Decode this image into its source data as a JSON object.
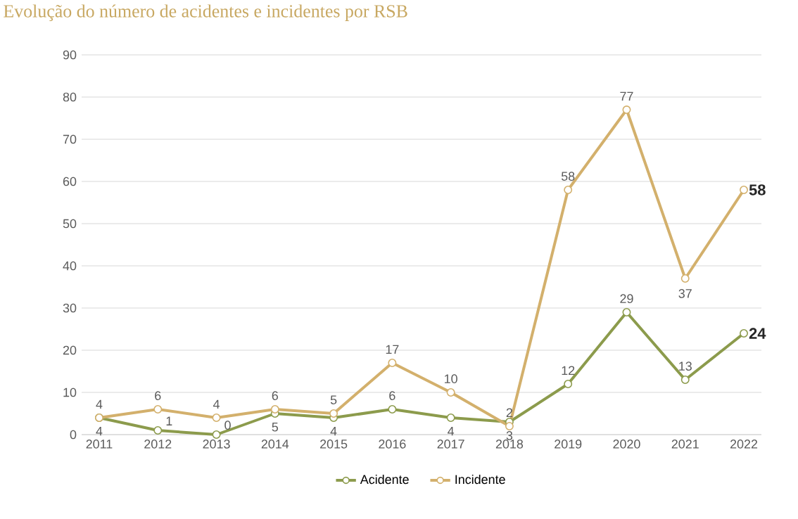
{
  "chart_data": {
    "type": "line",
    "title": "Evolução do número de acidentes e incidentes por RSB",
    "categories": [
      "2011",
      "2012",
      "2013",
      "2014",
      "2015",
      "2016",
      "2017",
      "2018",
      "2019",
      "2020",
      "2021",
      "2022"
    ],
    "series": [
      {
        "name": "Acidente",
        "color": "#8c9b4c",
        "values": [
          4,
          1,
          0,
          5,
          4,
          6,
          4,
          3,
          12,
          29,
          13,
          24
        ]
      },
      {
        "name": "Incidente",
        "color": "#d3b06c",
        "values": [
          4,
          6,
          4,
          6,
          5,
          17,
          10,
          2,
          58,
          77,
          37,
          58
        ]
      }
    ],
    "ylim": [
      0,
      90
    ],
    "yticks": [
      0,
      10,
      20,
      30,
      40,
      50,
      60,
      70,
      80,
      90
    ],
    "grid": "y",
    "legend": "bottom",
    "marker": "circle",
    "line_style": "solid",
    "data_labels": true
  }
}
